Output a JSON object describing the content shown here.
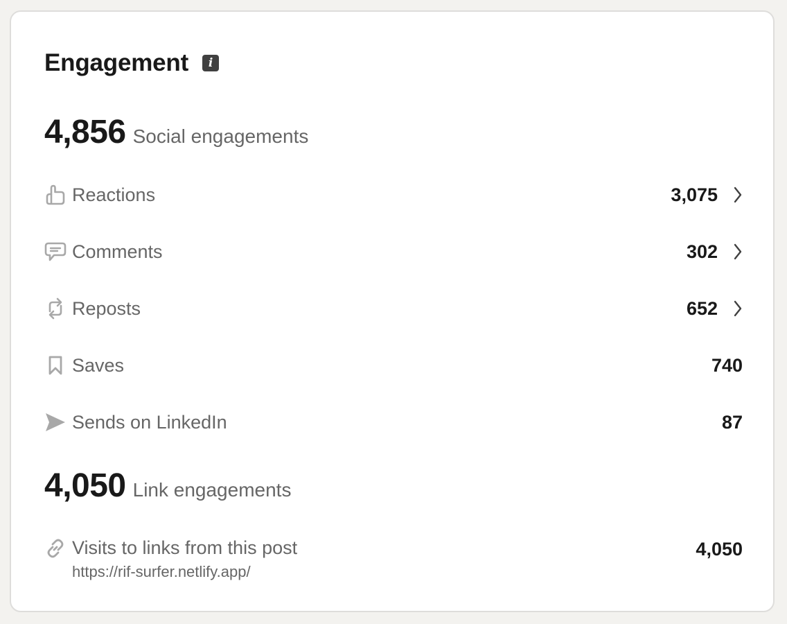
{
  "card": {
    "title": "Engagement",
    "info_icon": "info-icon"
  },
  "social": {
    "total": "4,856",
    "label": "Social engagements",
    "items": [
      {
        "icon": "thumbs-up-icon",
        "label": "Reactions",
        "value": "3,075",
        "has_chevron": true
      },
      {
        "icon": "comment-icon",
        "label": "Comments",
        "value": "302",
        "has_chevron": true
      },
      {
        "icon": "repost-icon",
        "label": "Reposts",
        "value": "652",
        "has_chevron": true
      },
      {
        "icon": "bookmark-icon",
        "label": "Saves",
        "value": "740",
        "has_chevron": false
      },
      {
        "icon": "send-icon",
        "label": "Sends on LinkedIn",
        "value": "87",
        "has_chevron": false
      }
    ]
  },
  "link": {
    "total": "4,050",
    "label": "Link engagements",
    "visits_label": "Visits to links from this post",
    "visits_url": "https://rif-surfer.netlify.app/",
    "visits_value": "4,050",
    "icon": "link-icon"
  },
  "colors": {
    "page_bg": "#f3f2ef",
    "card_bg": "#ffffff",
    "text_primary": "#191919",
    "text_secondary": "#666666",
    "icon_gray": "#a8a8a8"
  }
}
